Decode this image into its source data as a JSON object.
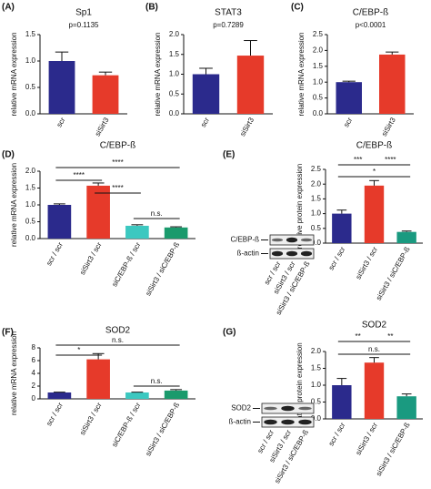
{
  "chart_data": [
    {
      "type": "bar",
      "panel": "(A)",
      "title": "Sp1",
      "subtitle": "p=0.1135",
      "ylabel": "relative mRNA expression",
      "categories": [
        "scr",
        "siSirt3"
      ],
      "values": [
        1.0,
        0.73
      ],
      "errors": [
        0.17,
        0.06
      ],
      "colors": [
        "#2b2a8c",
        "#e63a2a"
      ],
      "ylim": [
        0,
        1.5
      ],
      "yticks": [
        {
          "value": 0,
          "label": "0.0"
        },
        0.5,
        {
          "value": 1,
          "label": "1.0"
        },
        1.5
      ]
    },
    {
      "type": "bar",
      "panel": "(B)",
      "title": "STAT3",
      "subtitle": "p=0.7289",
      "ylabel": "relative mRNA expression",
      "categories": [
        "scr",
        "siSirt3"
      ],
      "values": [
        1.0,
        1.47
      ],
      "errors": [
        0.15,
        0.38
      ],
      "colors": [
        "#2b2a8c",
        "#e63a2a"
      ],
      "ylim": [
        0,
        2
      ],
      "yticks": [
        {
          "value": 0,
          "label": "0.0"
        },
        0.5,
        {
          "value": 1,
          "label": "1.0"
        },
        1.5,
        {
          "value": 2,
          "label": "2.0"
        }
      ]
    },
    {
      "type": "bar",
      "panel": "(C)",
      "title": "C/EBP-ß",
      "subtitle": "p<0.0001",
      "ylabel": "relative mRNA expression",
      "categories": [
        "scr",
        "siSirt3"
      ],
      "values": [
        1.0,
        1.87
      ],
      "errors": [
        0.03,
        0.08
      ],
      "colors": [
        "#2b2a8c",
        "#e63a2a"
      ],
      "ylim": [
        0,
        2.5
      ],
      "yticks": [
        {
          "value": 0,
          "label": "0.0"
        },
        0.5,
        {
          "value": 1,
          "label": "1.0"
        },
        1.5,
        {
          "value": 2,
          "label": "2.0"
        },
        2.5
      ]
    },
    {
      "type": "bar",
      "panel": "(D)",
      "title": "C/EBP-ß",
      "ylabel": "relative mRNA expression",
      "categories": [
        "scr / scr",
        "siSirt3 / scr",
        "siC/EBP-ß / scr",
        "siSirt3 / siC/EBP-ß"
      ],
      "values": [
        1.0,
        1.57,
        0.38,
        0.33
      ],
      "errors": [
        0.03,
        0.08,
        0.03,
        0.02
      ],
      "colors": [
        "#2b2a8c",
        "#e63a2a",
        "#3cc8c0",
        "#1a9a6c"
      ],
      "ylim": [
        0,
        2
      ],
      "yticks": [
        {
          "value": 0,
          "label": "0.0"
        },
        0.5,
        {
          "value": 1,
          "label": "1.0"
        },
        1.5,
        {
          "value": 2,
          "label": "2.0"
        }
      ],
      "annotations": [
        "****",
        "****",
        "****",
        "n.s."
      ]
    },
    {
      "type": "bar",
      "panel": "(E)",
      "title": "C/EBP-ß",
      "ylabel": "relative protein expression",
      "categories": [
        "scr / scr",
        "siSirt3 / scr",
        "siSirt3 / siC/EBP-ß"
      ],
      "values": [
        1.0,
        1.95,
        0.38
      ],
      "errors": [
        0.12,
        0.17,
        0.03
      ],
      "colors": [
        "#2b2a8c",
        "#e63a2a",
        "#1a9a80"
      ],
      "ylim": [
        0,
        2.5
      ],
      "yticks": [
        {
          "value": 0,
          "label": "0.0"
        },
        0.5,
        {
          "value": 1,
          "label": "1.0"
        },
        1.5,
        {
          "value": 2,
          "label": "2.0"
        },
        2.5
      ],
      "annotations": [
        "***",
        "****",
        "*"
      ],
      "blot_labels": [
        "C/EBP-ß",
        "ß-actin"
      ]
    },
    {
      "type": "bar",
      "panel": "(F)",
      "title": "SOD2",
      "ylabel": "relative mRNA expression",
      "categories": [
        "scr / scr",
        "siSirt3 / scr",
        "siC/EBP-ß / scr",
        "siSirt3 / siC/EBP-ß"
      ],
      "values": [
        1.0,
        6.2,
        1.0,
        1.3
      ],
      "errors": [
        0.05,
        0.9,
        0.05,
        0.15
      ],
      "colors": [
        "#2b2a8c",
        "#e63a2a",
        "#3cc8c0",
        "#1a9a6c"
      ],
      "ylim": [
        0,
        8
      ],
      "yticks": [
        0,
        2,
        4,
        6,
        8
      ],
      "annotations": [
        "n.s.",
        "*",
        "n.s."
      ]
    },
    {
      "type": "bar",
      "panel": "(G)",
      "title": "SOD2",
      "ylabel": "relative protein expression",
      "categories": [
        "scr / scr",
        "siSirt3 / scr",
        "siSirt3 / siC/EBP-ß"
      ],
      "values": [
        1.0,
        1.67,
        0.67
      ],
      "errors": [
        0.2,
        0.15,
        0.07
      ],
      "colors": [
        "#2b2a8c",
        "#e63a2a",
        "#1a9a80"
      ],
      "ylim": [
        0,
        2
      ],
      "yticks": [
        {
          "value": 0,
          "label": "0.0"
        },
        0.5,
        {
          "value": 1,
          "label": "1.0"
        },
        1.5,
        {
          "value": 2,
          "label": "2.0"
        }
      ],
      "annotations": [
        "**",
        "**",
        "n.s."
      ],
      "blot_labels": [
        "SOD2",
        "ß-actin"
      ]
    }
  ]
}
